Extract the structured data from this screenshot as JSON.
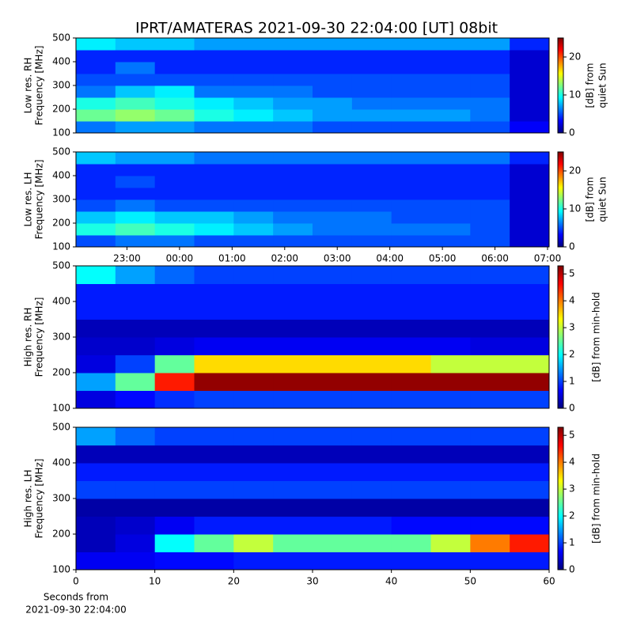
{
  "title": "IPRT/AMATERAS 2021-09-30 22:04:00 [UT]   08bit",
  "chart_data": [
    {
      "type": "heatmap",
      "ylabel": [
        "Low res. RH",
        "Frequency [MHz]"
      ],
      "colormap": "jet",
      "xlim": [
        22.03,
        31.03
      ],
      "ylim": [
        100,
        500
      ],
      "yticks": [
        100,
        200,
        300,
        400,
        500
      ],
      "x": [
        22.405,
        23.155,
        23.905,
        24.655,
        25.405,
        26.155,
        26.905,
        27.655,
        28.405,
        29.155,
        29.905,
        30.655
      ],
      "y": [
        125,
        175,
        225,
        275,
        325,
        375,
        425,
        475
      ],
      "z": [
        [
          6,
          7,
          7,
          6,
          6,
          6,
          5,
          5,
          5,
          5,
          5,
          3
        ],
        [
          12,
          13,
          12,
          10,
          9,
          8,
          7,
          7,
          7,
          7,
          6,
          2
        ],
        [
          10,
          11,
          10,
          9,
          8,
          7,
          7,
          6,
          6,
          6,
          6,
          2
        ],
        [
          6,
          8,
          9,
          6,
          6,
          6,
          5,
          5,
          5,
          5,
          5,
          2
        ],
        [
          5,
          5,
          5,
          5,
          5,
          5,
          5,
          5,
          5,
          5,
          5,
          2
        ],
        [
          4,
          6,
          4,
          4,
          4,
          4,
          4,
          4,
          4,
          4,
          4,
          2
        ],
        [
          4,
          4,
          4,
          4,
          4,
          4,
          4,
          4,
          4,
          4,
          4,
          2
        ],
        [
          9,
          8,
          8,
          7,
          7,
          7,
          7,
          7,
          7,
          7,
          7,
          4
        ]
      ],
      "clim": [
        0,
        25
      ],
      "cticks": [
        0,
        10,
        20
      ],
      "colorbar_label": [
        "[dB] from",
        "quiet Sun"
      ]
    },
    {
      "type": "heatmap",
      "ylabel": [
        "Low res. LH",
        "Frequency [MHz]"
      ],
      "colormap": "jet",
      "xlim": [
        22.03,
        31.03
      ],
      "ylim": [
        100,
        500
      ],
      "yticks": [
        100,
        200,
        300,
        400,
        500
      ],
      "xticks": [
        {
          "value": 23,
          "label": "23:00"
        },
        {
          "value": 24,
          "label": "00:00"
        },
        {
          "value": 25,
          "label": "01:00"
        },
        {
          "value": 26,
          "label": "02:00"
        },
        {
          "value": 27,
          "label": "03:00"
        },
        {
          "value": 28,
          "label": "04:00"
        },
        {
          "value": 29,
          "label": "05:00"
        },
        {
          "value": 30,
          "label": "06:00"
        },
        {
          "value": 31,
          "label": "07:00"
        }
      ],
      "x": [
        22.405,
        23.155,
        23.905,
        24.655,
        25.405,
        26.155,
        26.905,
        27.655,
        28.405,
        29.155,
        29.905,
        30.655
      ],
      "y": [
        125,
        175,
        225,
        275,
        325,
        375,
        425,
        475
      ],
      "z": [
        [
          5,
          6,
          6,
          5,
          5,
          5,
          5,
          5,
          5,
          5,
          5,
          2
        ],
        [
          10,
          11,
          10,
          9,
          8,
          7,
          6,
          6,
          6,
          6,
          5,
          2
        ],
        [
          8,
          9,
          8,
          8,
          7,
          6,
          6,
          6,
          5,
          5,
          5,
          2
        ],
        [
          5,
          6,
          5,
          5,
          5,
          5,
          5,
          5,
          5,
          5,
          5,
          2
        ],
        [
          4,
          4,
          4,
          4,
          4,
          4,
          4,
          4,
          4,
          4,
          4,
          2
        ],
        [
          4,
          5,
          4,
          4,
          4,
          4,
          4,
          4,
          4,
          4,
          4,
          2
        ],
        [
          4,
          4,
          4,
          4,
          4,
          4,
          4,
          4,
          4,
          4,
          4,
          2
        ],
        [
          8,
          7,
          7,
          6,
          6,
          6,
          6,
          6,
          6,
          6,
          6,
          4
        ]
      ],
      "clim": [
        0,
        25
      ],
      "cticks": [
        0,
        10,
        20
      ],
      "colorbar_label": [
        "[dB] from",
        "quiet Sun"
      ]
    },
    {
      "type": "heatmap",
      "ylabel": [
        "High res. RH",
        "Frequency [MHz]"
      ],
      "colormap": "jet",
      "xlim": [
        0,
        60
      ],
      "ylim": [
        100,
        500
      ],
      "yticks": [
        100,
        200,
        300,
        400,
        500
      ],
      "x": [
        2.5,
        7.5,
        12.5,
        17.5,
        22.5,
        27.5,
        32.5,
        37.5,
        42.5,
        47.5,
        52.5,
        57.5
      ],
      "y": [
        125,
        175,
        225,
        275,
        325,
        375,
        425,
        475
      ],
      "z": [
        [
          0.5,
          0.7,
          0.9,
          1,
          1,
          1,
          1,
          1,
          1,
          1,
          1,
          1
        ],
        [
          1.5,
          2.5,
          4.5,
          5.2,
          5.2,
          5.2,
          5.2,
          5.2,
          5.2,
          5.2,
          5.2,
          5.2
        ],
        [
          0.5,
          1,
          2.5,
          3.5,
          3.5,
          3.5,
          3.5,
          3.5,
          3.5,
          3,
          3,
          3
        ],
        [
          0.4,
          0.4,
          0.5,
          0.6,
          0.6,
          0.6,
          0.6,
          0.6,
          0.6,
          0.6,
          0.5,
          0.5
        ],
        [
          0.3,
          0.3,
          0.3,
          0.3,
          0.3,
          0.3,
          0.3,
          0.3,
          0.3,
          0.3,
          0.3,
          0.3
        ],
        [
          0.8,
          0.8,
          0.8,
          0.8,
          0.8,
          0.8,
          0.8,
          0.8,
          0.8,
          0.8,
          0.8,
          0.8
        ],
        [
          0.8,
          0.8,
          0.8,
          0.8,
          0.8,
          0.8,
          0.8,
          0.8,
          0.8,
          0.8,
          0.8,
          0.8
        ],
        [
          2,
          1.5,
          1.2,
          1,
          1,
          1,
          1,
          1,
          1,
          1,
          1,
          1
        ]
      ],
      "clim": [
        0,
        5.3
      ],
      "cticks": [
        0,
        1,
        2,
        3,
        4,
        5
      ],
      "colorbar_label": [
        "[dB] from min-hold"
      ]
    },
    {
      "type": "heatmap",
      "ylabel": [
        "High res. LH",
        "Frequency [MHz]"
      ],
      "colormap": "jet",
      "xlim": [
        0,
        60
      ],
      "ylim": [
        100,
        500
      ],
      "yticks": [
        100,
        200,
        300,
        400,
        500
      ],
      "xticks": [
        0,
        10,
        20,
        30,
        40,
        50,
        60
      ],
      "xlabel": [
        "Seconds from",
        "2021-09-30 22:04:00"
      ],
      "x": [
        2.5,
        7.5,
        12.5,
        17.5,
        22.5,
        27.5,
        32.5,
        37.5,
        42.5,
        47.5,
        52.5,
        57.5
      ],
      "y": [
        125,
        175,
        225,
        275,
        325,
        375,
        425,
        475
      ],
      "z": [
        [
          0.6,
          0.6,
          0.7,
          0.7,
          0.8,
          0.8,
          0.8,
          0.8,
          0.8,
          0.8,
          0.8,
          0.8
        ],
        [
          0.3,
          0.5,
          2,
          2.5,
          3,
          2.5,
          2.5,
          2.5,
          2.5,
          3,
          4,
          4.5
        ],
        [
          0.3,
          0.4,
          0.6,
          0.8,
          0.8,
          0.8,
          0.8,
          0.8,
          0.7,
          0.7,
          0.7,
          0.7
        ],
        [
          0.2,
          0.2,
          0.2,
          0.2,
          0.2,
          0.2,
          0.2,
          0.2,
          0.2,
          0.2,
          0.2,
          0.2
        ],
        [
          1,
          1,
          1,
          1,
          1,
          1,
          1,
          1,
          1,
          1,
          1,
          1
        ],
        [
          0.8,
          0.8,
          0.8,
          0.8,
          0.8,
          0.8,
          0.8,
          0.8,
          0.8,
          0.8,
          0.8,
          0.8
        ],
        [
          0.3,
          0.3,
          0.3,
          0.3,
          0.3,
          0.3,
          0.3,
          0.3,
          0.3,
          0.3,
          0.3,
          0.3
        ],
        [
          1.5,
          1.2,
          1,
          1,
          1,
          1,
          1,
          1,
          1,
          1,
          1,
          1
        ]
      ],
      "clim": [
        0,
        5.3
      ],
      "cticks": [
        0,
        1,
        2,
        3,
        4,
        5
      ],
      "colorbar_label": [
        "[dB] from min-hold"
      ]
    }
  ]
}
